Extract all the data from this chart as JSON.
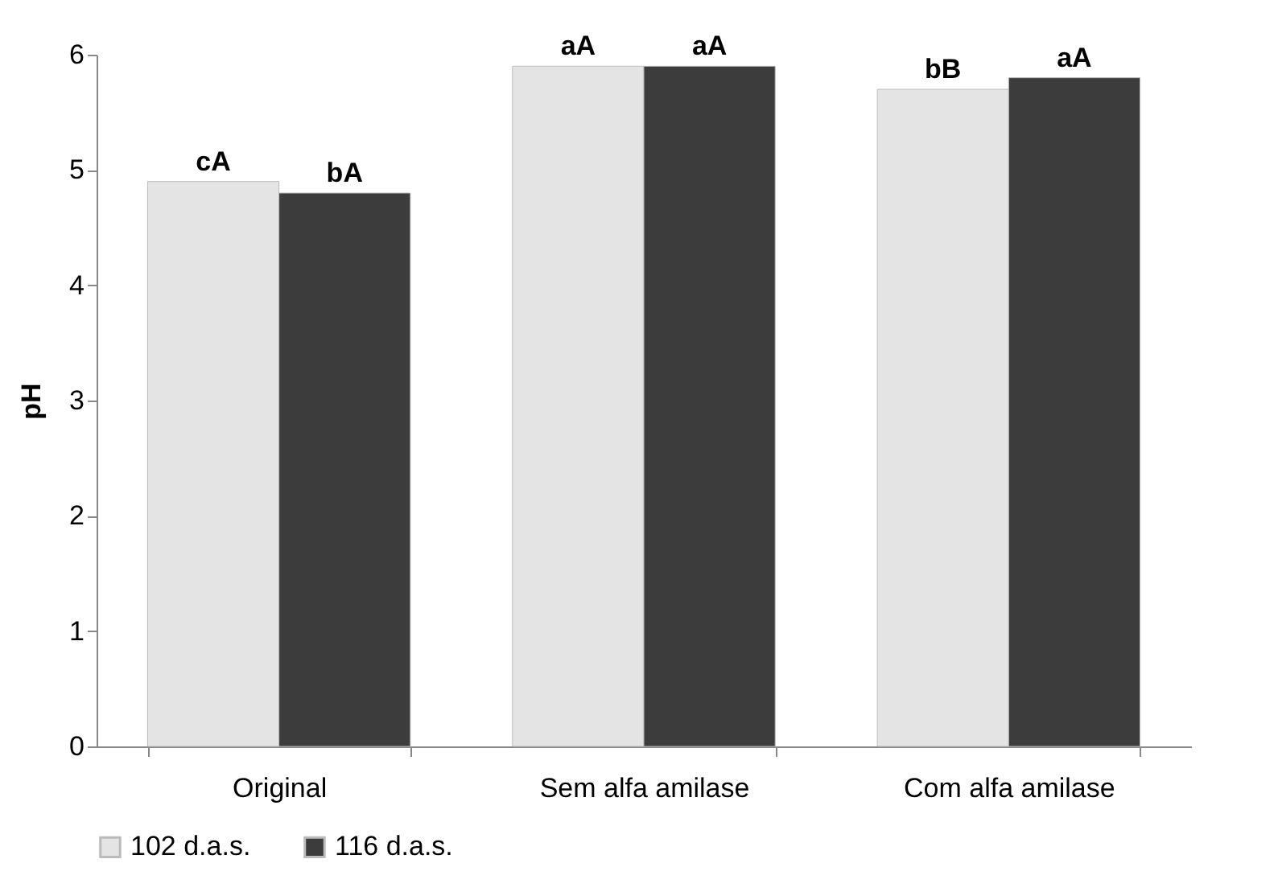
{
  "chart_data": {
    "type": "bar",
    "ylabel": "pH",
    "categories": [
      "Original",
      "Sem alfa amilase",
      "Com alfa amilase"
    ],
    "series": [
      {
        "name": "102 d.a.s.",
        "color": "#e4e4e4",
        "values": [
          4.9,
          5.9,
          5.7
        ],
        "value_labels": [
          "cA",
          "aA",
          "bB"
        ]
      },
      {
        "name": "116 d.a.s.",
        "color": "#3c3c3c",
        "values": [
          4.8,
          5.9,
          5.8
        ],
        "value_labels": [
          "bA",
          "aA",
          "aA"
        ]
      }
    ],
    "ylim": [
      0,
      6
    ],
    "yticks": [
      0,
      1,
      2,
      3,
      4,
      5,
      6
    ],
    "grid": false,
    "legend": "bottom"
  }
}
